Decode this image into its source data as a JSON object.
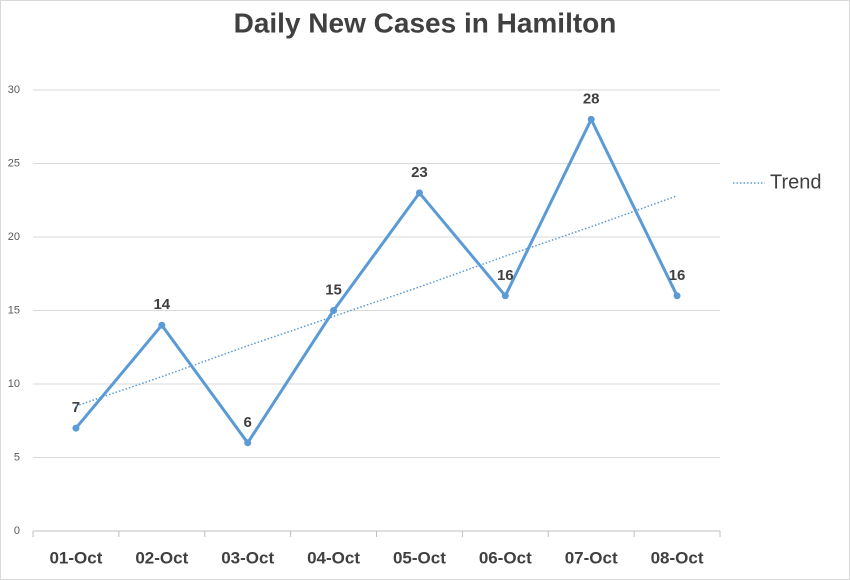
{
  "chart_data": {
    "type": "line",
    "title": "Daily New Cases in Hamilton",
    "categories": [
      "01-Oct",
      "02-Oct",
      "03-Oct",
      "04-Oct",
      "05-Oct",
      "06-Oct",
      "07-Oct",
      "08-Oct"
    ],
    "series": [
      {
        "color": "#5b9bd5",
        "values": [
          7,
          14,
          6,
          15,
          23,
          16,
          28,
          16
        ],
        "data_labels": true,
        "markers": true,
        "line_style": "solid"
      },
      {
        "name": "Trend",
        "color": "#5b9bd5",
        "values": [
          8.5,
          10.5,
          12.6,
          14.6,
          16.6,
          18.7,
          20.7,
          22.8
        ],
        "data_labels": false,
        "markers": false,
        "line_style": "dotted"
      }
    ],
    "ylim": [
      0,
      30
    ],
    "yticks": [
      0,
      5,
      10,
      15,
      20,
      25,
      30
    ],
    "grid": true,
    "legend": "right"
  }
}
